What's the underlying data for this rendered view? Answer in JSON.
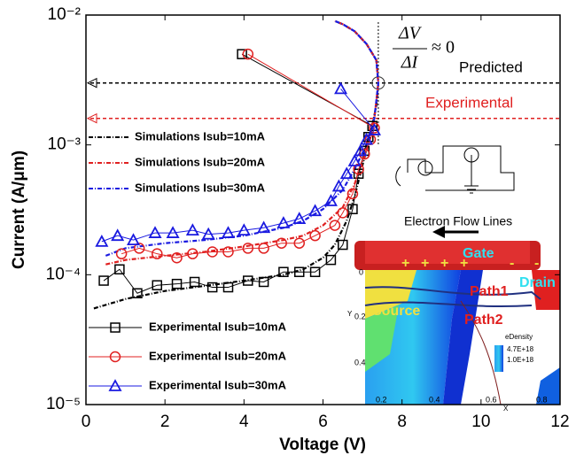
{
  "chart_data": {
    "type": "line",
    "log_y": true,
    "x_label": "Voltage (V)",
    "y_label": "Current (A/μm)",
    "xlim": [
      0,
      12
    ],
    "xticks": [
      0,
      2,
      4,
      6,
      8,
      10,
      12
    ],
    "ylim": [
      1e-05,
      0.01
    ],
    "yticks": [
      {
        "value": 1e-05,
        "label": "10⁻⁵"
      },
      {
        "value": 0.0001,
        "label": "10⁻⁴"
      },
      {
        "value": 0.001,
        "label": "10⁻³"
      },
      {
        "value": 0.01,
        "label": "10⁻²"
      }
    ],
    "series": [
      {
        "name": "Simulations Isub=10mA",
        "kind": "simulation",
        "color": "#000000",
        "x": [
          0.2,
          1,
          2,
          3,
          4,
          5,
          5.5,
          6,
          6.3,
          6.6,
          6.8,
          7,
          7.2,
          7.35,
          7.4,
          7.35,
          7.1,
          6.8,
          6.5,
          6.3
        ],
        "values": [
          5.5e-05,
          6.5e-05,
          7.5e-05,
          8.2e-05,
          9e-05,
          0.0001,
          0.00011,
          0.000135,
          0.00017,
          0.00026,
          0.0004,
          0.0007,
          0.0012,
          0.002,
          0.003,
          0.0045,
          0.006,
          0.0075,
          0.0085,
          0.009
        ]
      },
      {
        "name": "Simulations Isub=20mA",
        "kind": "simulation",
        "color": "#e02020",
        "x": [
          0.5,
          1,
          2,
          3,
          4,
          5,
          5.5,
          6,
          6.5,
          6.8,
          7.1,
          7.3,
          7.4,
          7.35,
          7.1,
          6.8,
          6.5,
          6.3
        ],
        "values": [
          0.00012,
          0.00013,
          0.00014,
          0.00015,
          0.000165,
          0.000185,
          0.0002,
          0.00024,
          0.00033,
          0.0005,
          0.0009,
          0.0016,
          0.003,
          0.0045,
          0.006,
          0.0075,
          0.0085,
          0.009
        ]
      },
      {
        "name": "Simulations Isub=30mA",
        "kind": "simulation",
        "color": "#1a1ae0",
        "x": [
          0.5,
          1,
          2,
          3,
          4,
          5,
          5.5,
          6,
          6.5,
          6.8,
          7.1,
          7.3,
          7.4,
          7.35,
          7.1,
          6.8,
          6.5,
          6.3
        ],
        "values": [
          0.00014,
          0.00016,
          0.000175,
          0.000185,
          0.0002,
          0.00023,
          0.00026,
          0.00032,
          0.00045,
          0.00065,
          0.001,
          0.0016,
          0.003,
          0.0045,
          0.006,
          0.0075,
          0.0085,
          0.009
        ]
      },
      {
        "name": "Experimental Isub=10mA",
        "kind": "experimental",
        "marker": "square",
        "color": "#000000",
        "x": [
          0.45,
          0.85,
          1.3,
          1.8,
          2.3,
          2.75,
          3.2,
          3.6,
          4.1,
          4.5,
          5.0,
          5.4,
          5.8,
          6.2,
          6.5,
          6.75,
          6.9,
          7.05,
          7.15,
          7.25,
          3.95
        ],
        "values": [
          9e-05,
          0.00011,
          7.2e-05,
          8.3e-05,
          8.5e-05,
          8.8e-05,
          8e-05,
          8e-05,
          9e-05,
          8.8e-05,
          0.000105,
          0.000105,
          0.000105,
          0.00013,
          0.00017,
          0.00032,
          0.0006,
          0.0009,
          0.00115,
          0.0014,
          0.005
        ]
      },
      {
        "name": "Experimental Isub=20mA",
        "kind": "experimental",
        "marker": "circle",
        "color": "#e02020",
        "x": [
          0.9,
          1.35,
          1.8,
          2.3,
          2.7,
          3.2,
          3.6,
          4.1,
          4.5,
          4.95,
          5.4,
          5.8,
          6.3,
          6.5,
          6.75,
          6.9,
          7.05,
          7.2,
          7.3,
          4.1
        ],
        "values": [
          0.000145,
          0.00016,
          0.000145,
          0.000135,
          0.000145,
          0.00015,
          0.00015,
          0.00016,
          0.00016,
          0.000175,
          0.000175,
          0.0002,
          0.00024,
          0.0003,
          0.00042,
          0.00065,
          0.00085,
          0.0011,
          0.00135,
          0.005
        ]
      },
      {
        "name": "Experimental Isub=30mA",
        "kind": "experimental",
        "marker": "triangle",
        "color": "#1a1ae0",
        "x": [
          0.4,
          0.8,
          1.2,
          1.75,
          2.2,
          2.7,
          3.1,
          3.6,
          4.0,
          4.5,
          5.0,
          5.4,
          5.8,
          6.2,
          6.4,
          6.6,
          6.8,
          6.95,
          7.1,
          7.3,
          6.45
        ],
        "values": [
          0.00018,
          0.0002,
          0.000185,
          0.00021,
          0.00021,
          0.00022,
          0.000205,
          0.00021,
          0.00022,
          0.00023,
          0.00025,
          0.00027,
          0.00031,
          0.00037,
          0.00048,
          0.0006,
          0.00075,
          0.0009,
          0.0011,
          0.0013,
          0.0027
        ]
      }
    ],
    "reference_lines": [
      {
        "value": 0.003,
        "color": "#000000",
        "label": "Predicted"
      },
      {
        "value": 0.0016,
        "color": "#e02020",
        "label": "Experimental"
      }
    ],
    "vertical_line": 7.4,
    "formula": {
      "numerator": "ΔV",
      "denominator": "ΔI",
      "relation": "≈ 0"
    },
    "inset": {
      "arrow_label": "Electron Flow Lines",
      "gate": "Gate",
      "drain": "Drain",
      "source": "Source",
      "path1": "Path1",
      "path2": "Path2",
      "legend_title": "eDensity",
      "legend_labels": [
        "4.7E+18",
        "1.0E+18"
      ],
      "plus": "+",
      "minus": "-",
      "y_ticks": [
        "0",
        "0.2",
        "0.4"
      ],
      "x_ticks": [
        "0.2",
        "0.4",
        "0.6",
        "0.8"
      ],
      "x_label": "X",
      "y_label": "Y"
    }
  }
}
